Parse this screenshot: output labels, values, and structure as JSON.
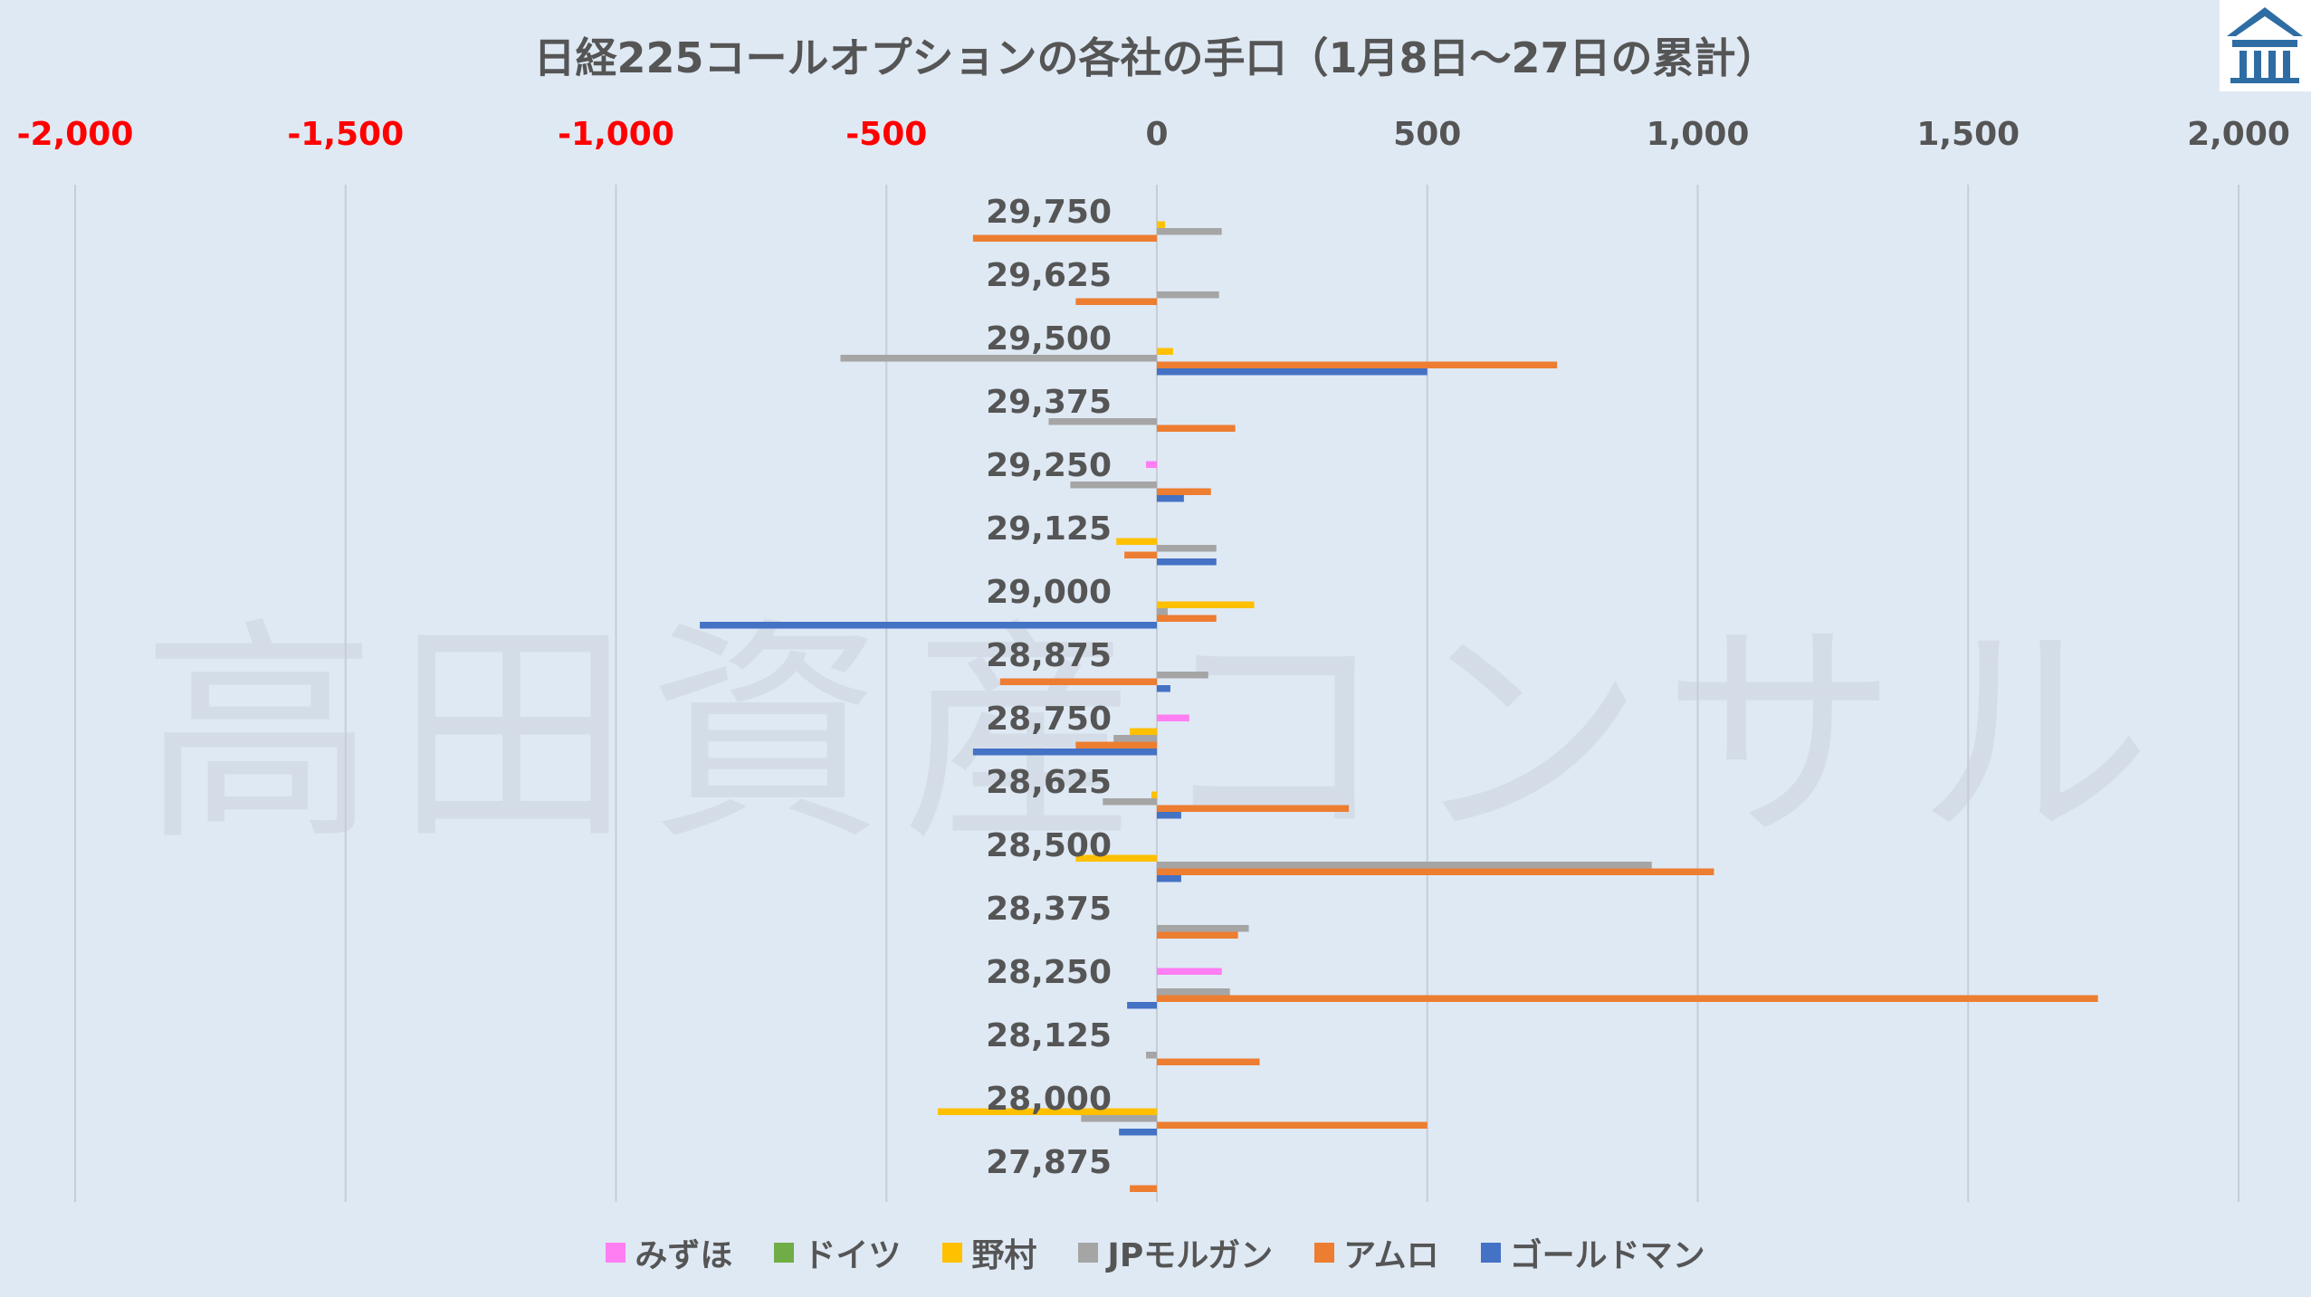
{
  "watermark": "高田資産コンサル",
  "chart_data": {
    "type": "bar",
    "orientation": "horizontal",
    "title": "日経225コールオプションの各社の手口（1月8日～27日の累計）",
    "xlim": [
      -2000,
      2000
    ],
    "x_ticks": [
      {
        "value": -2000,
        "label": "-2,000"
      },
      {
        "value": -1500,
        "label": "-1,500"
      },
      {
        "value": -1000,
        "label": "-1,000"
      },
      {
        "value": -500,
        "label": "-500"
      },
      {
        "value": 0,
        "label": "0"
      },
      {
        "value": 500,
        "label": "500"
      },
      {
        "value": 1000,
        "label": "1,000"
      },
      {
        "value": 1500,
        "label": "1,500"
      },
      {
        "value": 2000,
        "label": "2,000"
      }
    ],
    "negative_tick_color": "#ff0000",
    "positive_tick_color": "#555555",
    "grid": true,
    "legend_position": "bottom",
    "categories": [
      "29,750",
      "29,625",
      "29,500",
      "29,375",
      "29,250",
      "29,125",
      "29,000",
      "28,875",
      "28,750",
      "28,625",
      "28,500",
      "28,375",
      "28,250",
      "28,125",
      "28,000",
      "27,875"
    ],
    "series": [
      {
        "name": "みずほ",
        "color": "#ff7ef2",
        "values": [
          0,
          0,
          0,
          0,
          -20,
          0,
          0,
          0,
          60,
          0,
          0,
          0,
          120,
          0,
          0,
          0
        ]
      },
      {
        "name": "ドイツ",
        "color": "#70ad47",
        "values": [
          0,
          0,
          0,
          0,
          0,
          0,
          0,
          0,
          0,
          0,
          0,
          0,
          0,
          0,
          0,
          0
        ]
      },
      {
        "name": "野村",
        "color": "#ffc000",
        "values": [
          15,
          0,
          30,
          0,
          0,
          -75,
          180,
          0,
          -50,
          -10,
          -150,
          0,
          0,
          0,
          -405,
          0
        ]
      },
      {
        "name": "JPモルガン",
        "color": "#a5a5a5",
        "values": [
          120,
          115,
          -585,
          -200,
          -160,
          110,
          20,
          95,
          -80,
          -100,
          915,
          170,
          135,
          -20,
          -140,
          0
        ]
      },
      {
        "name": "アムロ",
        "color": "#ed7d31",
        "values": [
          -340,
          -150,
          740,
          145,
          100,
          -60,
          110,
          -290,
          -150,
          355,
          1030,
          150,
          1740,
          190,
          500,
          -50
        ]
      },
      {
        "name": "ゴールドマン",
        "color": "#4472c4",
        "values": [
          0,
          0,
          500,
          0,
          50,
          110,
          -845,
          25,
          -340,
          45,
          45,
          0,
          -55,
          0,
          -70,
          0
        ]
      }
    ]
  }
}
